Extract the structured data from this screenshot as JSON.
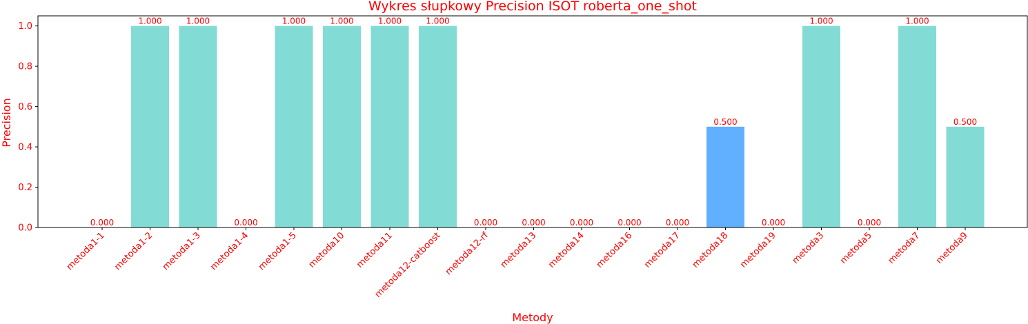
{
  "chart_data": {
    "type": "bar",
    "title": "Wykres słupkowy Precision ISOT roberta_one_shot",
    "xlabel": "Metody",
    "ylabel": "Precision",
    "ylim": [
      0,
      1.05
    ],
    "yticks": [
      "0.0",
      "0.2",
      "0.4",
      "0.6",
      "0.8",
      "1.0"
    ],
    "grid": false,
    "categories": [
      "metoda1-1",
      "metoda1-2",
      "metoda1-3",
      "metoda1-4",
      "metoda1-5",
      "metoda10",
      "metoda11",
      "metoda12-catboost",
      "metoda12-rf",
      "metoda13",
      "metoda14",
      "metoda16",
      "metoda17",
      "metoda18",
      "metoda19",
      "metoda3",
      "metoda5",
      "metoda7",
      "metoda9"
    ],
    "values": [
      0.0,
      1.0,
      1.0,
      0.0,
      1.0,
      1.0,
      1.0,
      1.0,
      0.0,
      0.0,
      0.0,
      0.0,
      0.0,
      0.5,
      0.0,
      1.0,
      0.0,
      1.0,
      0.5
    ],
    "value_labels": [
      "0.000",
      "1.000",
      "1.000",
      "0.000",
      "1.000",
      "1.000",
      "1.000",
      "1.000",
      "0.000",
      "0.000",
      "0.000",
      "0.000",
      "0.000",
      "0.500",
      "0.000",
      "1.000",
      "0.000",
      "1.000",
      "0.500"
    ],
    "highlight_category": "metoda18",
    "colors": {
      "bar": "#83dbd5",
      "highlight": "#61afff",
      "text": "#ff0000",
      "axis": "#000000"
    }
  }
}
